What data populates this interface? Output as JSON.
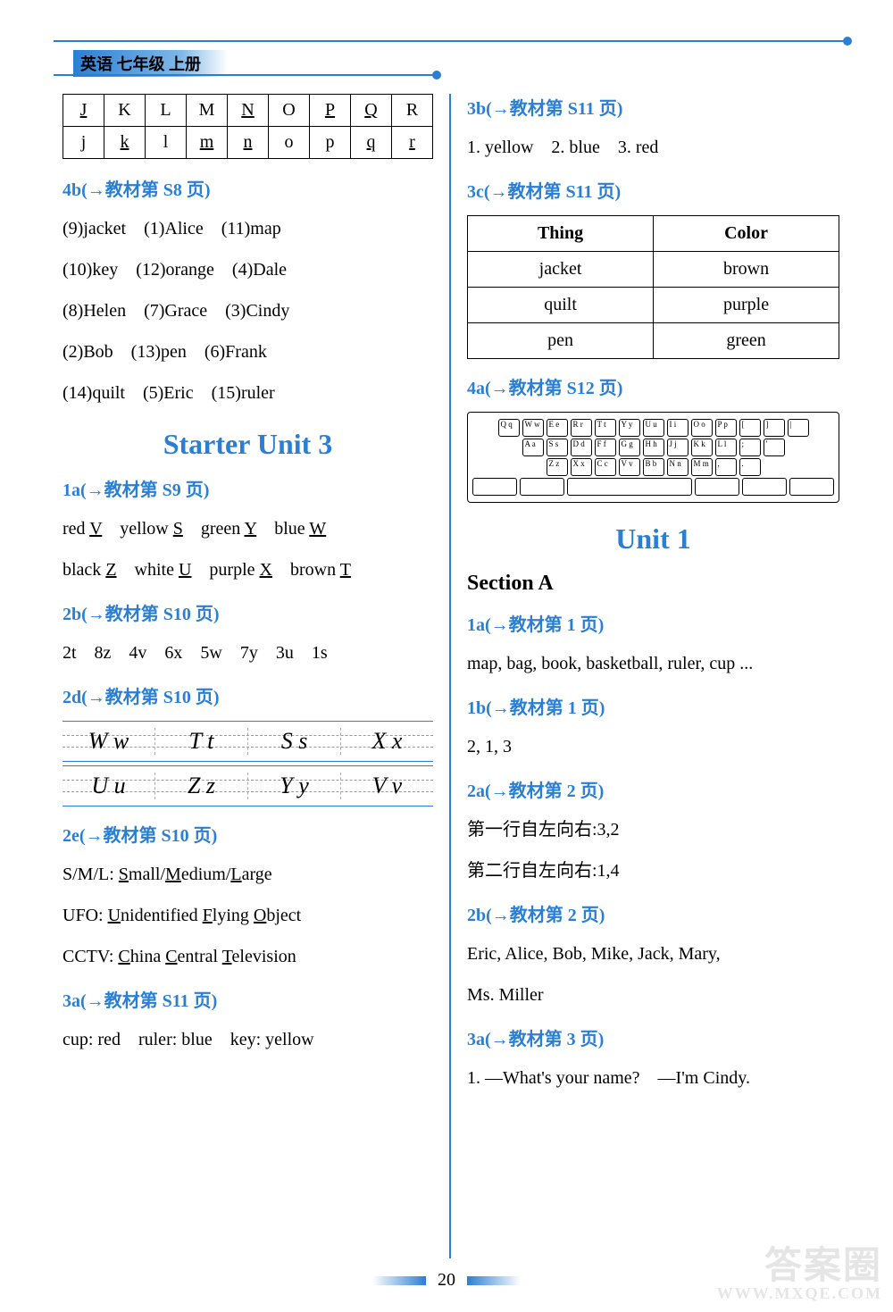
{
  "header": {
    "badge": "英语 七年级 上册"
  },
  "left": {
    "letter_table": {
      "row1": [
        "J",
        "K",
        "L",
        "M",
        "N",
        "O",
        "P",
        "Q",
        "R"
      ],
      "row2": [
        "j",
        "k",
        "l",
        "m",
        "n",
        "o",
        "p",
        "q",
        "r"
      ],
      "underline_r1": [
        true,
        false,
        false,
        false,
        true,
        false,
        true,
        true,
        false
      ],
      "underline_r2": [
        false,
        true,
        false,
        true,
        true,
        false,
        false,
        true,
        true
      ]
    },
    "s4b": {
      "head": "4b(→教材第 S8 页)",
      "l1": "(9)jacket　(1)Alice　(11)map",
      "l2": "(10)key　(12)orange　(4)Dale",
      "l3": "(8)Helen　(7)Grace　(3)Cindy",
      "l4": "(2)Bob　(13)pen　(6)Frank",
      "l5": "(14)quilt　(5)Eric　(15)ruler"
    },
    "unit3_title": "Starter Unit 3",
    "s1a": {
      "head": "1a(→教材第 S9 页)"
    },
    "s1a_l1_parts": [
      "red ",
      "V",
      "　yellow ",
      "S",
      "　green ",
      "Y",
      "　blue ",
      "W"
    ],
    "s1a_l2_parts": [
      "black ",
      "Z",
      "　white ",
      "U",
      "　purple ",
      "X",
      "　brown ",
      "T"
    ],
    "s2b": {
      "head": "2b(→教材第 S10 页)",
      "l1": "2t　8z　4v　6x　5w　7y　3u　1s"
    },
    "s2d": {
      "head": "2d(→教材第 S10 页)",
      "hw1": [
        "W w",
        "T t",
        "S s",
        "X x"
      ],
      "hw2": [
        "U u",
        "Z z",
        "Y y",
        "V v"
      ]
    },
    "s2e": {
      "head": "2e(→教材第 S10 页)"
    },
    "s2e_l1_parts": [
      "S/M/L: ",
      "S",
      "mall/",
      "M",
      "edium/",
      "L",
      "arge"
    ],
    "s2e_l2_parts": [
      "UFO: ",
      "U",
      "nidentified ",
      "F",
      "lying ",
      "O",
      "bject"
    ],
    "s2e_l3_parts": [
      "CCTV: ",
      "C",
      "hina ",
      "C",
      "entral ",
      "T",
      "elevision"
    ],
    "s3a": {
      "head": "3a(→教材第 S11 页)",
      "l1": "cup: red　ruler: blue　key: yellow"
    }
  },
  "right": {
    "s3b": {
      "head": "3b(→教材第 S11 页)",
      "l1": "1. yellow　2. blue　3. red"
    },
    "s3c": {
      "head": "3c(→教材第 S11 页)",
      "th1": "Thing",
      "th2": "Color",
      "rows": [
        [
          "jacket",
          "brown"
        ],
        [
          "quilt",
          "purple"
        ],
        [
          "pen",
          "green"
        ]
      ]
    },
    "s4a": {
      "head": "4a(→教材第 S12 页)",
      "kb": {
        "r1": [
          "Q q",
          "W w",
          "E e",
          "R r",
          "T t",
          "Y y",
          "U u",
          "I i",
          "O o",
          "P p",
          "[",
          "]",
          "|"
        ],
        "r2": [
          "A a",
          "S s",
          "D d",
          "F f",
          "G g",
          "H h",
          "J j",
          "K k",
          "L l",
          ";",
          "'"
        ],
        "r3": [
          "Z z",
          "X x",
          "C c",
          "V v",
          "B b",
          "N n",
          "M m",
          ",",
          "."
        ],
        "r4": [
          "",
          "",
          "",
          "",
          "",
          ""
        ]
      }
    },
    "unit1_title": "Unit 1",
    "sectionA": "Section A",
    "u1a": {
      "head": "1a(→教材第 1 页)",
      "l1": "map, bag, book, basketball, ruler, cup ..."
    },
    "u1b": {
      "head": "1b(→教材第 1 页)",
      "l1": "2, 1, 3"
    },
    "u2a": {
      "head": "2a(→教材第 2 页)",
      "l1": "第一行自左向右:3,2",
      "l2": "第二行自左向右:1,4"
    },
    "u2b": {
      "head": "2b(→教材第 2 页)",
      "l1": "Eric, Alice, Bob, Mike, Jack, Mary,",
      "l2": "Ms. Miller"
    },
    "u3a": {
      "head": "3a(→教材第 3 页)",
      "l1": "1. —What's your name?　—I'm Cindy."
    }
  },
  "page_number": "20",
  "watermark": {
    "big": "答案圈",
    "small": "WWW.MXQE.COM"
  }
}
